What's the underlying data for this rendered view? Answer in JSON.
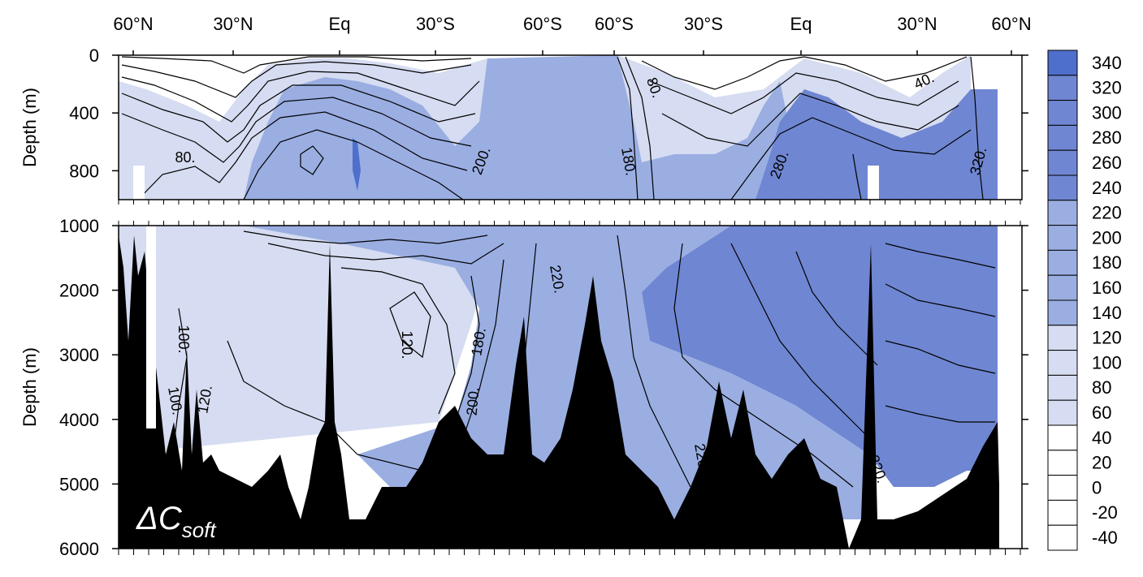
{
  "chart_data": {
    "type": "heatmap",
    "title": "",
    "panel_label": {
      "delta": "Δ",
      "main": "C",
      "sub": "soft"
    },
    "x_ticks": [
      "60°N",
      "30°N",
      "Eq",
      "30°S",
      "60°S",
      "60°S",
      "30°S",
      "Eq",
      "30°N",
      "60°N"
    ],
    "ylabel": "Depth (m)",
    "upper_panel": {
      "ylim": [
        0,
        1000
      ],
      "y_ticks": [
        "0",
        "400",
        "800"
      ]
    },
    "lower_panel": {
      "ylim": [
        1000,
        6000
      ],
      "y_ticks": [
        "1000",
        "2000",
        "3000",
        "4000",
        "5000",
        "6000"
      ]
    },
    "colorbar": {
      "levels": [
        -40,
        -20,
        0,
        20,
        40,
        60,
        80,
        100,
        120,
        140,
        160,
        180,
        200,
        220,
        240,
        260,
        280,
        300,
        320,
        340
      ],
      "tick_labels": [
        "340",
        "320",
        "300",
        "280",
        "260",
        "240",
        "220",
        "200",
        "180",
        "160",
        "140",
        "120",
        "100",
        "80",
        "60",
        "40",
        "20",
        "0",
        "-20",
        "-40"
      ],
      "colors": [
        "#ffffff",
        "#ffffff",
        "#ffffff",
        "#ffffff",
        "#ffffff",
        "#d6dcf1",
        "#d6dcf1",
        "#d6dcf1",
        "#d6dcf1",
        "#9aaee2",
        "#9aaee2",
        "#9aaee2",
        "#9aaee2",
        "#9aaee2",
        "#6f86d2",
        "#6f86d2",
        "#6f86d2",
        "#6f86d2",
        "#6f86d2",
        "#4e6fcc"
      ]
    },
    "contour_labels": [
      {
        "text": "80.",
        "panel": "upper"
      },
      {
        "text": "200.",
        "panel": "upper"
      },
      {
        "text": "180.",
        "panel": "upper"
      },
      {
        "text": "80.",
        "panel": "upper"
      },
      {
        "text": "280.",
        "panel": "upper"
      },
      {
        "text": "40.",
        "panel": "upper"
      },
      {
        "text": "320.",
        "panel": "upper"
      },
      {
        "text": "100.",
        "panel": "lower"
      },
      {
        "text": "100.",
        "panel": "lower"
      },
      {
        "text": "120.",
        "panel": "lower"
      },
      {
        "text": "120.",
        "panel": "lower"
      },
      {
        "text": "180.",
        "panel": "lower"
      },
      {
        "text": "200.",
        "panel": "lower"
      },
      {
        "text": "220.",
        "panel": "lower"
      },
      {
        "text": "220.",
        "panel": "lower"
      },
      {
        "text": "220.",
        "panel": "lower"
      }
    ]
  }
}
